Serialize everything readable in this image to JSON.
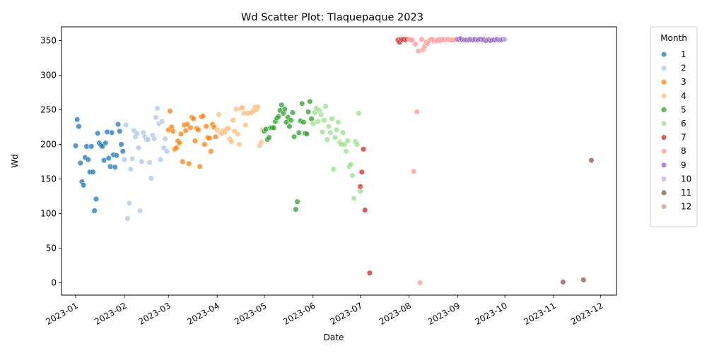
{
  "chart_data": {
    "type": "scatter",
    "title": "Wd Scatter Plot: Tlaquepaque 2023",
    "xlabel": "Date",
    "ylabel": "Wd",
    "x_type": "date",
    "xlim": [
      "2022-12-23",
      "2023-12-11"
    ],
    "ylim": [
      -18,
      370
    ],
    "yticks": [
      0,
      50,
      100,
      150,
      200,
      250,
      300,
      350
    ],
    "xticks": [
      "2023-01",
      "2023-02",
      "2023-03",
      "2023-04",
      "2023-05",
      "2023-06",
      "2023-07",
      "2023-08",
      "2023-09",
      "2023-10",
      "2023-11",
      "2023-12"
    ],
    "grid": false,
    "legend": {
      "title": "Month",
      "placement": "outside-right"
    },
    "series": [
      {
        "name": "1",
        "color": "#1f77b4",
        "points": [
          [
            "2023-01-01",
            198
          ],
          [
            "2023-01-02",
            236
          ],
          [
            "2023-01-03",
            226
          ],
          [
            "2023-01-04",
            173
          ],
          [
            "2023-01-05",
            146
          ],
          [
            "2023-01-06",
            141
          ],
          [
            "2023-01-07",
            181
          ],
          [
            "2023-01-08",
            197
          ],
          [
            "2023-01-09",
            178
          ],
          [
            "2023-01-10",
            160
          ],
          [
            "2023-01-11",
            197
          ],
          [
            "2023-01-12",
            160
          ],
          [
            "2023-01-13",
            104
          ],
          [
            "2023-01-14",
            121
          ],
          [
            "2023-01-15",
            216
          ],
          [
            "2023-01-16",
            202
          ],
          [
            "2023-01-17",
            199
          ],
          [
            "2023-01-18",
            197
          ],
          [
            "2023-01-19",
            177
          ],
          [
            "2023-01-20",
            202
          ],
          [
            "2023-01-21",
            218
          ],
          [
            "2023-01-22",
            180
          ],
          [
            "2023-01-23",
            168
          ],
          [
            "2023-01-24",
            217
          ],
          [
            "2023-01-25",
            185
          ],
          [
            "2023-01-26",
            167
          ],
          [
            "2023-01-27",
            184
          ],
          [
            "2023-01-28",
            229
          ],
          [
            "2023-01-29",
            219
          ],
          [
            "2023-01-30",
            200
          ],
          [
            "2023-01-31",
            190
          ]
        ]
      },
      {
        "name": "2",
        "color": "#aec7e8",
        "points": [
          [
            "2023-02-01",
            178
          ],
          [
            "2023-02-02",
            228
          ],
          [
            "2023-02-03",
            93
          ],
          [
            "2023-02-04",
            115
          ],
          [
            "2023-02-05",
            164
          ],
          [
            "2023-02-06",
            179
          ],
          [
            "2023-02-07",
            220
          ],
          [
            "2023-02-08",
            211
          ],
          [
            "2023-02-09",
            216
          ],
          [
            "2023-02-10",
            195
          ],
          [
            "2023-02-11",
            104
          ],
          [
            "2023-02-12",
            175
          ],
          [
            "2023-02-13",
            217
          ],
          [
            "2023-02-14",
            211
          ],
          [
            "2023-02-15",
            207
          ],
          [
            "2023-02-16",
            207
          ],
          [
            "2023-02-17",
            174
          ],
          [
            "2023-02-18",
            151
          ],
          [
            "2023-02-19",
            213
          ],
          [
            "2023-02-20",
            208
          ],
          [
            "2023-02-21",
            239
          ],
          [
            "2023-02-22",
            252
          ],
          [
            "2023-02-23",
            230
          ],
          [
            "2023-02-24",
            178
          ],
          [
            "2023-02-25",
            233
          ],
          [
            "2023-02-26",
            195
          ],
          [
            "2023-02-27",
            208
          ],
          [
            "2023-02-28",
            190
          ]
        ]
      },
      {
        "name": "3",
        "color": "#ff7f0e",
        "points": [
          [
            "2023-03-01",
            221
          ],
          [
            "2023-03-02",
            248
          ],
          [
            "2023-03-03",
            225
          ],
          [
            "2023-03-04",
            219
          ],
          [
            "2023-03-05",
            193
          ],
          [
            "2023-03-06",
            195
          ],
          [
            "2023-03-07",
            205
          ],
          [
            "2023-03-08",
            202
          ],
          [
            "2023-03-09",
            215
          ],
          [
            "2023-03-10",
            175
          ],
          [
            "2023-03-11",
            228
          ],
          [
            "2023-03-12",
            220
          ],
          [
            "2023-03-13",
            229
          ],
          [
            "2023-03-14",
            172
          ],
          [
            "2023-03-15",
            224
          ],
          [
            "2023-03-16",
            239
          ],
          [
            "2023-03-17",
            237
          ],
          [
            "2023-03-18",
            205
          ],
          [
            "2023-03-19",
            223
          ],
          [
            "2023-03-20",
            221
          ],
          [
            "2023-03-21",
            168
          ],
          [
            "2023-03-22",
            240
          ],
          [
            "2023-03-23",
            241
          ],
          [
            "2023-03-24",
            200
          ],
          [
            "2023-03-25",
            226
          ],
          [
            "2023-03-26",
            210
          ],
          [
            "2023-03-27",
            209
          ],
          [
            "2023-03-28",
            190
          ],
          [
            "2023-03-29",
            229
          ],
          [
            "2023-03-30",
            225
          ],
          [
            "2023-03-31",
            211
          ]
        ]
      },
      {
        "name": "4",
        "color": "#ffbb78",
        "points": [
          [
            "2023-04-01",
            221
          ],
          [
            "2023-04-02",
            243
          ],
          [
            "2023-04-03",
            217
          ],
          [
            "2023-04-04",
            216
          ],
          [
            "2023-04-05",
            220
          ],
          [
            "2023-04-06",
            218
          ],
          [
            "2023-04-07",
            222
          ],
          [
            "2023-04-08",
            223
          ],
          [
            "2023-04-09",
            208
          ],
          [
            "2023-04-10",
            204
          ],
          [
            "2023-04-11",
            235
          ],
          [
            "2023-04-12",
            219
          ],
          [
            "2023-04-13",
            251
          ],
          [
            "2023-04-14",
            215
          ],
          [
            "2023-04-15",
            200
          ],
          [
            "2023-04-16",
            252
          ],
          [
            "2023-04-17",
            253
          ],
          [
            "2023-04-18",
            245
          ],
          [
            "2023-04-19",
            228
          ],
          [
            "2023-04-20",
            245
          ],
          [
            "2023-04-21",
            245
          ],
          [
            "2023-04-22",
            246
          ],
          [
            "2023-04-23",
            246
          ],
          [
            "2023-04-24",
            249
          ],
          [
            "2023-04-25",
            254
          ],
          [
            "2023-04-26",
            250
          ],
          [
            "2023-04-27",
            254
          ],
          [
            "2023-04-28",
            198
          ],
          [
            "2023-04-29",
            203
          ],
          [
            "2023-04-30",
            221
          ]
        ]
      },
      {
        "name": "5",
        "color": "#2ca02c",
        "points": [
          [
            "2023-05-01",
            219
          ],
          [
            "2023-05-02",
            222
          ],
          [
            "2023-05-03",
            207
          ],
          [
            "2023-05-04",
            210
          ],
          [
            "2023-05-05",
            224
          ],
          [
            "2023-05-06",
            224
          ],
          [
            "2023-05-07",
            224
          ],
          [
            "2023-05-08",
            233
          ],
          [
            "2023-05-09",
            238
          ],
          [
            "2023-05-10",
            240
          ],
          [
            "2023-05-11",
            249
          ],
          [
            "2023-05-12",
            257
          ],
          [
            "2023-05-13",
            245
          ],
          [
            "2023-05-14",
            251
          ],
          [
            "2023-05-15",
            232
          ],
          [
            "2023-05-16",
            239
          ],
          [
            "2023-05-17",
            226
          ],
          [
            "2023-05-18",
            235
          ],
          [
            "2023-05-19",
            246
          ],
          [
            "2023-05-20",
            211
          ],
          [
            "2023-05-21",
            106
          ],
          [
            "2023-05-22",
            117
          ],
          [
            "2023-05-23",
            217
          ],
          [
            "2023-05-24",
            234
          ],
          [
            "2023-05-25",
            259
          ],
          [
            "2023-05-26",
            232
          ],
          [
            "2023-05-27",
            216
          ],
          [
            "2023-05-28",
            215
          ],
          [
            "2023-05-29",
            247
          ],
          [
            "2023-05-30",
            262
          ],
          [
            "2023-05-31",
            237
          ]
        ]
      },
      {
        "name": "6",
        "color": "#98df8a",
        "points": [
          [
            "2023-06-01",
            230
          ],
          [
            "2023-06-02",
            246
          ],
          [
            "2023-06-03",
            252
          ],
          [
            "2023-06-04",
            233
          ],
          [
            "2023-06-05",
            249
          ],
          [
            "2023-06-06",
            243
          ],
          [
            "2023-06-07",
            218
          ],
          [
            "2023-06-08",
            235
          ],
          [
            "2023-06-09",
            255
          ],
          [
            "2023-06-10",
            207
          ],
          [
            "2023-06-11",
            226
          ],
          [
            "2023-06-12",
            217
          ],
          [
            "2023-06-13",
            237
          ],
          [
            "2023-06-14",
            164
          ],
          [
            "2023-06-15",
            210
          ],
          [
            "2023-06-16",
            221
          ],
          [
            "2023-06-17",
            232
          ],
          [
            "2023-06-18",
            203
          ],
          [
            "2023-06-19",
            200
          ],
          [
            "2023-06-20",
            217
          ],
          [
            "2023-06-21",
            200
          ],
          [
            "2023-06-22",
            190
          ],
          [
            "2023-06-23",
            205
          ],
          [
            "2023-06-24",
            168
          ],
          [
            "2023-06-25",
            171
          ],
          [
            "2023-06-26",
            155
          ],
          [
            "2023-06-27",
            122
          ],
          [
            "2023-06-28",
            204
          ],
          [
            "2023-06-29",
            200
          ],
          [
            "2023-06-30",
            245
          ],
          [
            "2023-07-01",
            132
          ]
        ]
      },
      {
        "name": "7",
        "color": "#d62728",
        "points": [
          [
            "2023-07-01",
            139
          ],
          [
            "2023-07-02",
            160
          ],
          [
            "2023-07-03",
            193
          ],
          [
            "2023-07-04",
            105
          ],
          [
            "2023-07-07",
            14
          ],
          [
            "2023-07-25",
            351
          ],
          [
            "2023-07-26",
            348
          ],
          [
            "2023-07-27",
            352
          ],
          [
            "2023-07-28",
            351
          ],
          [
            "2023-07-29",
            352
          ],
          [
            "2023-07-30",
            351
          ],
          [
            "2023-07-31",
            352
          ]
        ]
      },
      {
        "name": "8",
        "color": "#ff9896",
        "points": [
          [
            "2023-08-01",
            352
          ],
          [
            "2023-08-02",
            351
          ],
          [
            "2023-08-03",
            351
          ],
          [
            "2023-08-04",
            161
          ],
          [
            "2023-08-05",
            345
          ],
          [
            "2023-08-06",
            247
          ],
          [
            "2023-08-07",
            335
          ],
          [
            "2023-08-08",
            0
          ],
          [
            "2023-08-09",
            352
          ],
          [
            "2023-08-10",
            337
          ],
          [
            "2023-08-11",
            342
          ],
          [
            "2023-08-12",
            348
          ],
          [
            "2023-08-13",
            346
          ],
          [
            "2023-08-14",
            350
          ],
          [
            "2023-08-15",
            352
          ],
          [
            "2023-08-16",
            352
          ],
          [
            "2023-08-17",
            349
          ],
          [
            "2023-08-18",
            350
          ],
          [
            "2023-08-19",
            350
          ],
          [
            "2023-08-20",
            352
          ],
          [
            "2023-08-21",
            350
          ],
          [
            "2023-08-22",
            352
          ],
          [
            "2023-08-23",
            351
          ],
          [
            "2023-08-24",
            352
          ],
          [
            "2023-08-25",
            351
          ],
          [
            "2023-08-26",
            352
          ],
          [
            "2023-08-27",
            351
          ],
          [
            "2023-08-28",
            351
          ],
          [
            "2023-08-29",
            351
          ],
          [
            "2023-08-30",
            351
          ],
          [
            "2023-08-31",
            352
          ]
        ]
      },
      {
        "name": "9",
        "color": "#9467bd",
        "points": [
          [
            "2023-09-01",
            352
          ],
          [
            "2023-09-02",
            352
          ],
          [
            "2023-09-03",
            353
          ],
          [
            "2023-09-04",
            351
          ],
          [
            "2023-09-05",
            351
          ],
          [
            "2023-09-06",
            351
          ],
          [
            "2023-09-07",
            351
          ],
          [
            "2023-09-08",
            351
          ],
          [
            "2023-09-09",
            352
          ],
          [
            "2023-09-10",
            351
          ],
          [
            "2023-09-11",
            351
          ],
          [
            "2023-09-12",
            352
          ],
          [
            "2023-09-13",
            351
          ],
          [
            "2023-09-14",
            351
          ],
          [
            "2023-09-15",
            352
          ],
          [
            "2023-09-16",
            352
          ],
          [
            "2023-09-17",
            351
          ],
          [
            "2023-09-18",
            351
          ],
          [
            "2023-09-19",
            350
          ],
          [
            "2023-09-20",
            351
          ],
          [
            "2023-09-21",
            351
          ],
          [
            "2023-09-22",
            350
          ],
          [
            "2023-09-23",
            351
          ],
          [
            "2023-09-24",
            351
          ],
          [
            "2023-09-25",
            351
          ],
          [
            "2023-09-26",
            352
          ],
          [
            "2023-09-27",
            351
          ],
          [
            "2023-09-28",
            351
          ],
          [
            "2023-09-29",
            351
          ],
          [
            "2023-09-30",
            352
          ]
        ]
      },
      {
        "name": "10",
        "color": "#c5b0d5",
        "points": [
          [
            "2023-10-01",
            352
          ]
        ]
      },
      {
        "name": "11",
        "color": "#8c564b",
        "points": [
          [
            "2023-11-07",
            1
          ],
          [
            "2023-11-20",
            4
          ],
          [
            "2023-11-25",
            177
          ]
        ]
      },
      {
        "name": "12",
        "color": "#c49c94",
        "points": []
      }
    ]
  }
}
